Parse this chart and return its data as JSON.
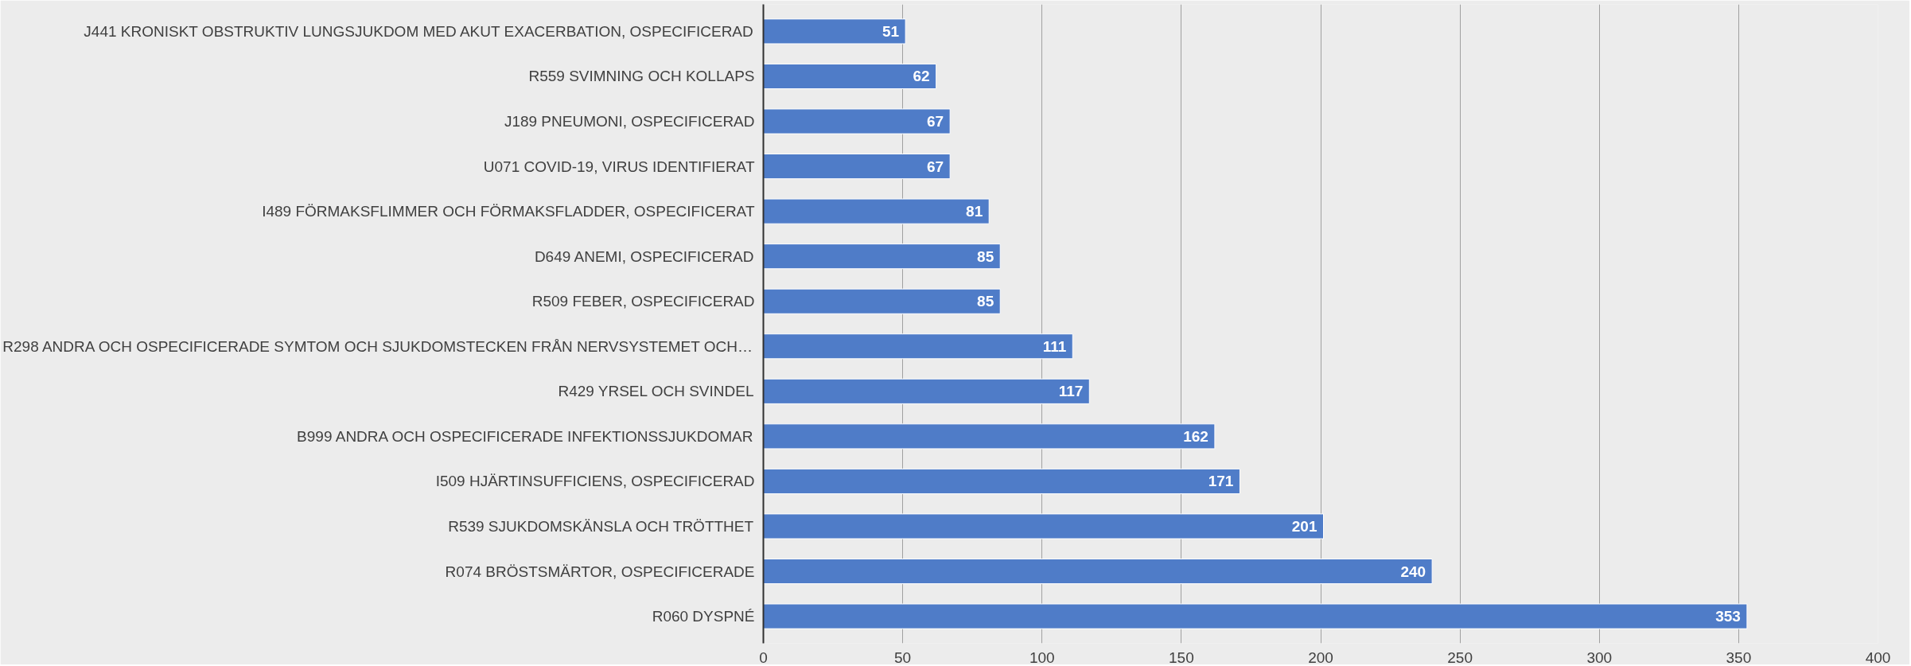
{
  "chart_data": {
    "type": "bar",
    "orientation": "horizontal",
    "categories": [
      "J441 KRONISKT OBSTRUKTIV LUNGSJUKDOM MED AKUT EXACERBATION, OSPECIFICERAD",
      "R559 SVIMNING OCH KOLLAPS",
      "J189 PNEUMONI, OSPECIFICERAD",
      "U071 COVID-19, VIRUS IDENTIFIERAT",
      "I489 FÖRMAKSFLIMMER OCH FÖRMAKSFLADDER, OSPECIFICERAT",
      "D649 ANEMI, OSPECIFICERAD",
      "R509 FEBER, OSPECIFICERAD",
      "R298 ANDRA OCH OSPECIFICERADE SYMTOM OCH SJUKDOMSTECKEN FRÅN NERVSYSTEMET OCH…",
      "R429 YRSEL OCH SVINDEL",
      "B999 ANDRA OCH OSPECIFICERADE INFEKTIONSSJUKDOMAR",
      "I509 HJÄRTINSUFFICIENS, OSPECIFICERAD",
      "R539 SJUKDOMSKÄNSLA OCH TRÖTTHET",
      "R074 BRÖSTSMÄRTOR, OSPECIFICERADE",
      "R060 DYSPNÉ"
    ],
    "values": [
      51,
      62,
      67,
      67,
      81,
      85,
      85,
      111,
      117,
      162,
      171,
      201,
      240,
      353
    ],
    "color": "#4f7cc8",
    "data_labels": true,
    "xlim": [
      0,
      400
    ],
    "xticks": [
      0,
      50,
      100,
      150,
      200,
      250,
      300,
      350,
      400
    ],
    "grid": "x"
  }
}
